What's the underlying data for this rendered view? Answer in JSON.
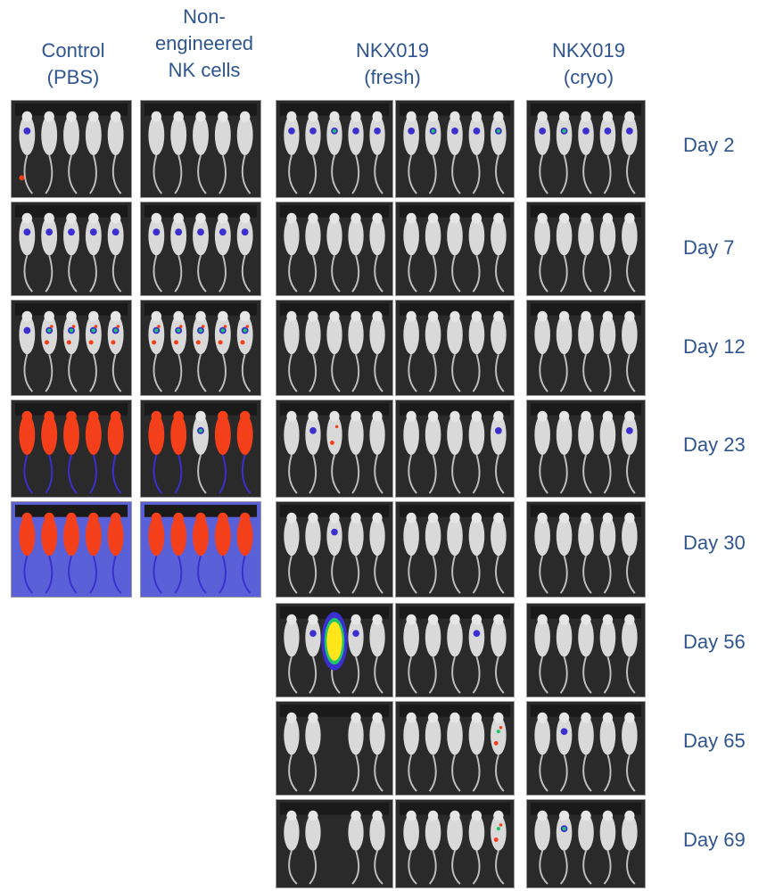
{
  "headers": {
    "control": "Control\n(PBS)",
    "nonengineered": "Non-\nengineered\nNK cells",
    "fresh": "NKX019\n(fresh)",
    "cryo": "NKX019\n(cryo)"
  },
  "days": [
    "Day 2",
    "Day 7",
    "Day 12",
    "Day 23",
    "Day 30",
    "Day 56",
    "Day 65",
    "Day 69"
  ],
  "colors": {
    "label_text": "#2e5590",
    "panel_bg": "#2a2a2a",
    "mouse_body": "#d9d9d9",
    "signal_low": "#3b2fd0",
    "signal_mid": "#22c46a",
    "signal_high": "#f3401a",
    "signal_peak": "#ffe61a",
    "background_blue": "#5a60d8"
  },
  "images": [
    {
      "group": "control",
      "day": "Day 2",
      "signal": [
        [
          "low",
          "tail"
        ],
        [],
        [],
        [],
        []
      ]
    },
    {
      "group": "nonengineered",
      "day": "Day 2",
      "signal": [
        [],
        [],
        [],
        [],
        []
      ]
    },
    {
      "group": "fresh_a",
      "day": "Day 2",
      "signal": [
        [
          "low"
        ],
        [
          "low"
        ],
        [
          "low",
          "mid"
        ],
        [
          "low"
        ],
        [
          "low"
        ]
      ]
    },
    {
      "group": "fresh_b",
      "day": "Day 2",
      "signal": [
        [
          "low"
        ],
        [
          "low",
          "mid"
        ],
        [
          "low"
        ],
        [
          "low"
        ],
        [
          "low",
          "mid"
        ]
      ]
    },
    {
      "group": "cryo",
      "day": "Day 2",
      "signal": [
        [
          "low"
        ],
        [
          "low",
          "mid"
        ],
        [
          "low"
        ],
        [
          "low"
        ],
        [
          "low"
        ]
      ]
    },
    {
      "group": "control",
      "day": "Day 7",
      "signal": [
        [
          "low"
        ],
        [
          "low"
        ],
        [
          "low"
        ],
        [
          "low"
        ],
        [
          "low"
        ]
      ]
    },
    {
      "group": "nonengineered",
      "day": "Day 7",
      "signal": [
        [
          "low"
        ],
        [
          "low"
        ],
        [
          "low"
        ],
        [
          "low"
        ],
        [
          "low"
        ]
      ]
    },
    {
      "group": "fresh_a",
      "day": "Day 7",
      "signal": [
        [],
        [],
        [],
        [],
        []
      ]
    },
    {
      "group": "fresh_b",
      "day": "Day 7",
      "signal": [
        [],
        [],
        [],
        [],
        []
      ]
    },
    {
      "group": "cryo",
      "day": "Day 7",
      "signal": [
        [],
        [],
        [],
        [],
        []
      ]
    },
    {
      "group": "control",
      "day": "Day 12",
      "signal": [
        [
          "low"
        ],
        [
          "low",
          "mid",
          "high"
        ],
        [
          "low",
          "mid",
          "high"
        ],
        [
          "low",
          "mid",
          "high"
        ],
        [
          "low",
          "mid",
          "high"
        ]
      ]
    },
    {
      "group": "nonengineered",
      "day": "Day 12",
      "signal": [
        [
          "low",
          "mid",
          "high"
        ],
        [
          "low",
          "mid",
          "high"
        ],
        [
          "low",
          "mid",
          "high"
        ],
        [
          "low",
          "mid",
          "high"
        ],
        [
          "low",
          "mid",
          "high"
        ]
      ]
    },
    {
      "group": "fresh_a",
      "day": "Day 12",
      "signal": [
        [],
        [],
        [],
        [],
        []
      ]
    },
    {
      "group": "fresh_b",
      "day": "Day 12",
      "signal": [
        [],
        [],
        [],
        [],
        []
      ]
    },
    {
      "group": "cryo",
      "day": "Day 12",
      "signal": [
        [],
        [],
        [],
        [],
        []
      ]
    },
    {
      "group": "control",
      "day": "Day 23",
      "signal": [
        [
          "full"
        ],
        [
          "full"
        ],
        [
          "full"
        ],
        [
          "full"
        ],
        [
          "full"
        ]
      ]
    },
    {
      "group": "nonengineered",
      "day": "Day 23",
      "signal": [
        [
          "full"
        ],
        [
          "full"
        ],
        [
          "low",
          "mid"
        ],
        [
          "full"
        ],
        [
          "full"
        ]
      ]
    },
    {
      "group": "fresh_a",
      "day": "Day 23",
      "signal": [
        [],
        [
          "low"
        ],
        [
          "high"
        ],
        [],
        []
      ]
    },
    {
      "group": "fresh_b",
      "day": "Day 23",
      "signal": [
        [],
        [],
        [],
        [],
        [
          "low"
        ]
      ]
    },
    {
      "group": "cryo",
      "day": "Day 23",
      "signal": [
        [],
        [],
        [],
        [],
        [
          "low"
        ]
      ]
    },
    {
      "group": "control",
      "day": "Day 30",
      "signal": [
        [
          "full"
        ],
        [
          "full"
        ],
        [
          "full"
        ],
        [
          "full"
        ],
        [
          "full"
        ]
      ],
      "background": "blue"
    },
    {
      "group": "nonengineered",
      "day": "Day 30",
      "signal": [
        [
          "full"
        ],
        [
          "full"
        ],
        [
          "full"
        ],
        [
          "full"
        ],
        [
          "full"
        ]
      ],
      "background": "blue"
    },
    {
      "group": "fresh_a",
      "day": "Day 30",
      "signal": [
        [],
        [],
        [
          "low"
        ],
        [],
        []
      ]
    },
    {
      "group": "fresh_b",
      "day": "Day 30",
      "signal": [
        [],
        [],
        [],
        [],
        []
      ]
    },
    {
      "group": "cryo",
      "day": "Day 30",
      "signal": [
        [],
        [],
        [],
        [],
        []
      ]
    },
    {
      "group": "fresh_a",
      "day": "Day 56",
      "signal": [
        [],
        [
          "low"
        ],
        [
          "peak"
        ],
        [
          "low"
        ],
        []
      ]
    },
    {
      "group": "fresh_b",
      "day": "Day 56",
      "signal": [
        [],
        [],
        [],
        [
          "low"
        ],
        []
      ]
    },
    {
      "group": "cryo",
      "day": "Day 56",
      "signal": [
        [],
        [],
        [],
        [],
        []
      ]
    },
    {
      "group": "fresh_a",
      "day": "Day 65",
      "signal": [
        [],
        [],
        null,
        [],
        []
      ]
    },
    {
      "group": "fresh_b",
      "day": "Day 65",
      "signal": [
        [],
        [],
        [],
        [],
        [
          "high",
          "mid"
        ]
      ]
    },
    {
      "group": "cryo",
      "day": "Day 65",
      "signal": [
        [],
        [
          "low"
        ],
        [],
        [],
        []
      ]
    },
    {
      "group": "fresh_a",
      "day": "Day 69",
      "signal": [
        [],
        [],
        null,
        [],
        []
      ]
    },
    {
      "group": "fresh_b",
      "day": "Day 69",
      "signal": [
        [],
        [],
        [],
        [],
        [
          "high",
          "mid"
        ]
      ]
    },
    {
      "group": "cryo",
      "day": "Day 69",
      "signal": [
        [],
        [
          "low",
          "mid"
        ],
        [],
        [],
        []
      ]
    }
  ]
}
